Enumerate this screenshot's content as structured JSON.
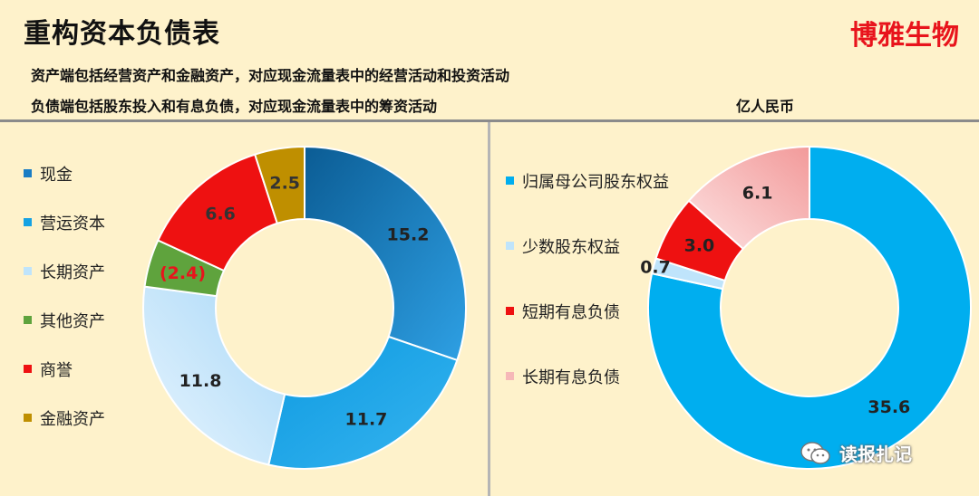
{
  "header": {
    "title": "重构资本负债表",
    "company": "博雅生物",
    "description_line1": "资产端包括经营资产和金融资产，对应现金流量表中的经营活动和投资活动",
    "description_line2": "负债端包括股东投入和有息负债，对应现金流量表中的筹资活动",
    "unit": "亿人民币"
  },
  "watermark": {
    "text": "读报扎记",
    "icon": "wechat-icon"
  },
  "chart_data": [
    {
      "type": "donut",
      "title": "",
      "legend_position": "left",
      "categories": [
        "现金",
        "营运资本",
        "长期资产",
        "其他资产",
        "商誉",
        "金融资产"
      ],
      "values": [
        15.2,
        11.7,
        11.8,
        -2.4,
        6.6,
        2.5
      ],
      "data_labels": [
        "15.2",
        "11.7",
        "11.8",
        "(2.4)",
        "6.6",
        "2.5"
      ],
      "colors": [
        "#1a7dc4",
        "#15a2e3",
        "#bfe4fb",
        "#5fa33d",
        "#ee1111",
        "#bf8f00"
      ]
    },
    {
      "type": "donut",
      "title": "",
      "legend_position": "left",
      "categories": [
        "归属母公司股东权益",
        "少数股东权益",
        "短期有息负债",
        "长期有息负债"
      ],
      "values": [
        35.6,
        0.7,
        3.0,
        6.1
      ],
      "data_labels": [
        "35.6",
        "0.7",
        "3.0",
        "6.1"
      ],
      "colors": [
        "#00aeef",
        "#bfe4fb",
        "#ee1111",
        "#f6b8b8"
      ]
    }
  ]
}
